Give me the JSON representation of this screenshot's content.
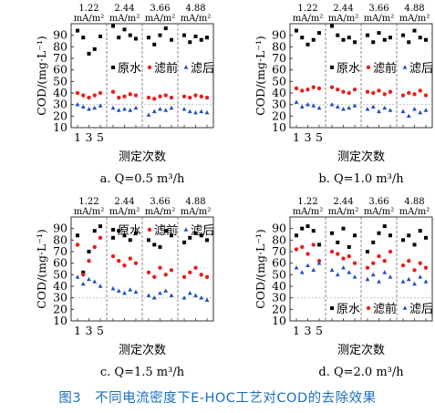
{
  "figure": {
    "caption": "图3　不同电流密度下E-HOC工艺对COD的去除效果"
  },
  "colors": {
    "raw": "#000000",
    "before": "#e8201c",
    "after": "#1f4fbf",
    "grid": "#bbbbbb",
    "caption": "#1a6fc0"
  },
  "chart_data": [
    {
      "type": "scatter",
      "panel_label": "a. Q=0.5 m³/h",
      "xlabel": "测定次数",
      "ylabel": "COD/(mg·L⁻¹)",
      "ylim": [
        10,
        100
      ],
      "yticks": [
        10,
        20,
        30,
        40,
        50,
        60,
        70,
        80,
        90
      ],
      "xticks": [
        "1",
        "3",
        "5"
      ],
      "group_labels": [
        "1.22 mA/m²",
        "2.44 mA/m²",
        "3.66 mA/m²",
        "4.88 mA/m²"
      ],
      "legend": [
        "原水",
        "滤前",
        "滤后"
      ],
      "legend_position": "middle",
      "reference_line": 30,
      "series": [
        {
          "name": "原水",
          "groups": [
            [
              94,
              88,
              74,
              78,
              89
            ],
            [
              98,
              88,
              95,
              90,
              87
            ],
            [
              88,
              82,
              90,
              96,
              86
            ],
            [
              90,
              84,
              89,
              86,
              88
            ]
          ]
        },
        {
          "name": "滤前",
          "groups": [
            [
              40,
              38,
              36,
              38,
              40
            ],
            [
              41,
              36,
              37,
              39,
              38
            ],
            [
              36,
              35,
              37,
              38,
              36
            ],
            [
              37,
              36,
              38,
              37,
              36
            ]
          ]
        },
        {
          "name": "滤后",
          "groups": [
            [
              30,
              28,
              26,
              27,
              29
            ],
            [
              27,
              25,
              26,
              25,
              27
            ],
            [
              21,
              24,
              26,
              25,
              27
            ],
            [
              26,
              24,
              23,
              24,
              23
            ]
          ]
        }
      ]
    },
    {
      "type": "scatter",
      "panel_label": "b. Q=1.0 m³/h",
      "xlabel": "测定次数",
      "ylabel": "COD/(mg·L⁻¹)",
      "ylim": [
        10,
        100
      ],
      "yticks": [
        10,
        20,
        30,
        40,
        50,
        60,
        70,
        80,
        90
      ],
      "xticks": [
        "1",
        "3",
        "5"
      ],
      "group_labels": [
        "1.22 mA/m²",
        "2.44 mA/m²",
        "3.66 mA/m²",
        "4.88 mA/m²"
      ],
      "legend": [
        "原水",
        "滤前",
        "滤后"
      ],
      "legend_position": "middle",
      "reference_line": 30,
      "series": [
        {
          "name": "原水",
          "groups": [
            [
              94,
              88,
              82,
              86,
              92
            ],
            [
              98,
              90,
              86,
              88,
              84
            ],
            [
              90,
              84,
              92,
              86,
              88
            ],
            [
              90,
              84,
              94,
              88,
              86
            ]
          ]
        },
        {
          "name": "滤前",
          "groups": [
            [
              44,
              42,
              43,
              45,
              44
            ],
            [
              45,
              43,
              41,
              40,
              43
            ],
            [
              41,
              40,
              42,
              39,
              41
            ],
            [
              38,
              40,
              39,
              42,
              38
            ]
          ]
        },
        {
          "name": "滤后",
          "groups": [
            [
              32,
              28,
              30,
              29,
              27
            ],
            [
              30,
              28,
              26,
              27,
              29
            ],
            [
              26,
              28,
              24,
              27,
              25
            ],
            [
              24,
              20,
              26,
              23,
              25
            ]
          ]
        }
      ]
    },
    {
      "type": "scatter",
      "panel_label": "c. Q=1.5 m³/h",
      "xlabel": "测定次数",
      "ylabel": "COD/(mg·L⁻¹)",
      "ylim": [
        10,
        100
      ],
      "yticks": [
        10,
        20,
        30,
        40,
        50,
        60,
        70,
        80,
        90
      ],
      "xticks": [
        "1",
        "3",
        "5"
      ],
      "group_labels": [
        "1.22 mA/m²",
        "2.44 mA/m²",
        "3.66 mA/m²",
        "4.88 mA/m²"
      ],
      "legend": [
        "原水",
        "滤前",
        "滤后"
      ],
      "legend_position": "top-right",
      "reference_line": 30,
      "series": [
        {
          "name": "原水",
          "groups": [
            [
              84,
              52,
              70,
              88,
              92
            ],
            [
              82,
              88,
              84,
              80,
              86
            ],
            [
              80,
              76,
              74,
              88,
              84
            ],
            [
              78,
              82,
              86,
              84,
              80
            ]
          ]
        },
        {
          "name": "滤前",
          "groups": [
            [
              76,
              50,
              62,
              74,
              82
            ],
            [
              66,
              62,
              58,
              64,
              60
            ],
            [
              52,
              48,
              56,
              50,
              54
            ],
            [
              48,
              52,
              56,
              50,
              48
            ]
          ]
        },
        {
          "name": "滤后",
          "groups": [
            [
              48,
              42,
              46,
              44,
              40
            ],
            [
              38,
              36,
              34,
              37,
              35
            ],
            [
              32,
              30,
              34,
              36,
              32
            ],
            [
              30,
              34,
              32,
              30,
              28
            ]
          ]
        }
      ]
    },
    {
      "type": "scatter",
      "panel_label": "d. Q=2.0 m³/h",
      "xlabel": "测定次数",
      "ylabel": "COD/(mg·L⁻¹)",
      "ylim": [
        10,
        100
      ],
      "yticks": [
        10,
        20,
        30,
        40,
        50,
        60,
        70,
        80,
        90
      ],
      "xticks": [
        "1",
        "3",
        "5"
      ],
      "group_labels": [
        "1.22 mA/m²",
        "2.44 mA/m²",
        "3.66 mA/m²",
        "4.88 mA/m²"
      ],
      "legend": [
        "原水",
        "滤前",
        "滤后"
      ],
      "legend_position": "bottom",
      "reference_line": 30,
      "series": [
        {
          "name": "原水",
          "groups": [
            [
              84,
              90,
              92,
              88,
              76
            ],
            [
              86,
              78,
              90,
              74,
              84
            ],
            [
              70,
              78,
              86,
              92,
              84
            ],
            [
              80,
              84,
              76,
              88,
              82
            ]
          ]
        },
        {
          "name": "滤前",
          "groups": [
            [
              72,
              74,
              68,
              76,
              62
            ],
            [
              70,
              68,
              64,
              66,
              60
            ],
            [
              56,
              60,
              66,
              62,
              70
            ],
            [
              58,
              62,
              54,
              60,
              56
            ]
          ]
        },
        {
          "name": "滤后",
          "groups": [
            [
              56,
              52,
              58,
              54,
              60
            ],
            [
              54,
              50,
              56,
              52,
              48
            ],
            [
              46,
              50,
              44,
              52,
              48
            ],
            [
              44,
              46,
              42,
              48,
              44
            ]
          ]
        }
      ]
    }
  ]
}
